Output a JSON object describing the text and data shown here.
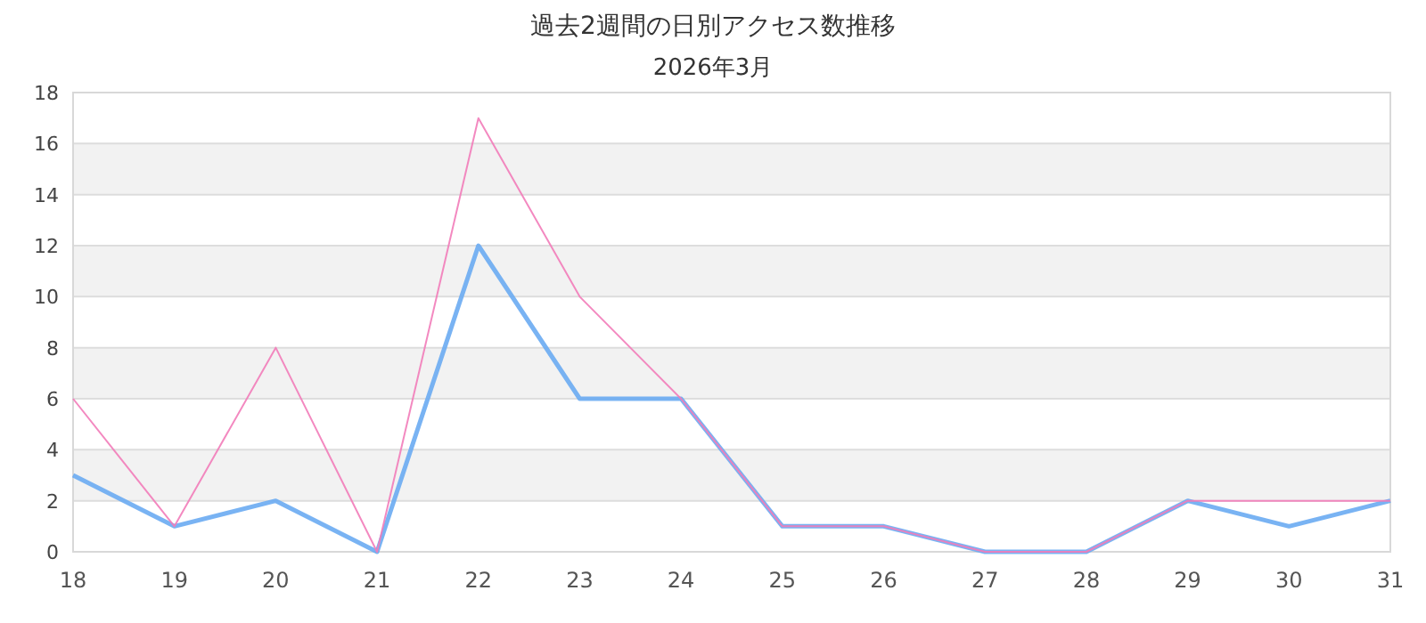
{
  "chart_data": {
    "type": "line",
    "title": "過去2週間の日別アクセス数推移",
    "subtitle": "2026年3月",
    "categories": [
      "18",
      "19",
      "20",
      "21",
      "22",
      "23",
      "24",
      "25",
      "26",
      "27",
      "28",
      "29",
      "30",
      "31"
    ],
    "series": [
      {
        "color": "#6aabf2",
        "values": [
          3,
          1,
          2,
          0,
          12,
          6,
          6,
          1,
          1,
          0,
          0,
          2,
          1,
          2
        ]
      },
      {
        "color": "#f27cb9",
        "values": [
          6,
          1,
          8,
          0,
          17,
          10,
          6,
          1,
          1,
          0,
          0,
          2,
          2,
          2
        ]
      }
    ],
    "ylim": [
      0,
      18
    ],
    "yticks": [
      0,
      2,
      4,
      6,
      8,
      10,
      12,
      14,
      16,
      18
    ],
    "grid": "y"
  }
}
